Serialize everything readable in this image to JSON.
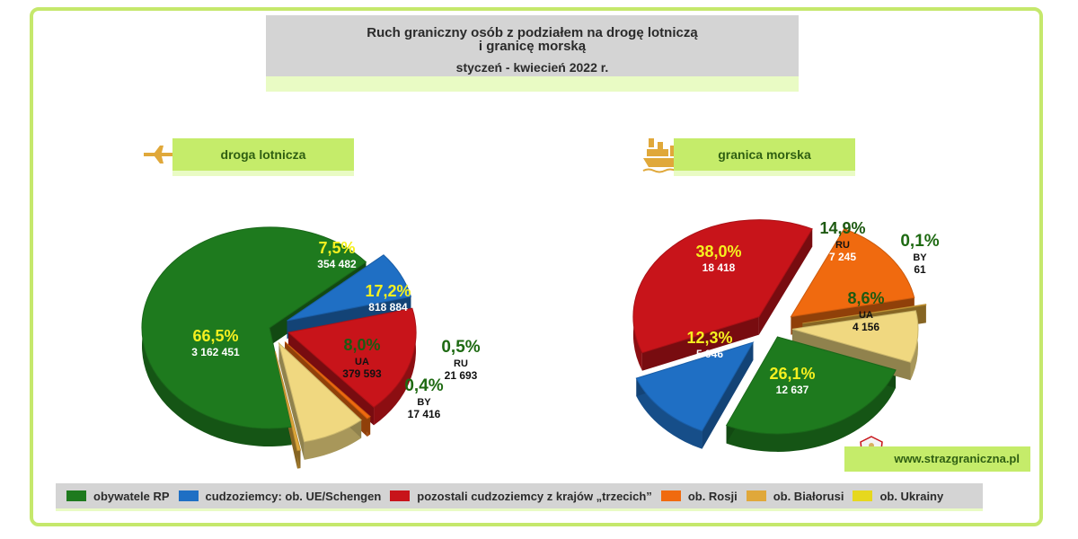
{
  "title": {
    "line1": "Ruch graniczny osób z podziałem na drogę lotniczą",
    "line2": "i granicę morską",
    "subtitle": "styczeń - kwiecień 2022 r."
  },
  "sections": {
    "air": "droga lotnicza",
    "sea": "granica morska"
  },
  "website": "www.strazgraniczna.pl",
  "colors": {
    "pl": "#1e7a1e",
    "eu": "#1f6fc4",
    "third": "#c8141a",
    "ru": "#f06a0f",
    "by": "#e0a83a",
    "ua": "#f0d880",
    "accent_green": "#c5ec6a",
    "frame": "#c5e86c"
  },
  "legend": [
    {
      "label": "obywatele RP",
      "color": "#1e7a1e"
    },
    {
      "label": "cudzoziemcy: ob. UE/Schengen",
      "color": "#1f6fc4"
    },
    {
      "label": "pozostali cudzoziemcy z krajów „trzecich”",
      "color": "#c8141a"
    },
    {
      "label": "ob. Rosji",
      "color": "#f06a0f"
    },
    {
      "label": "ob. Białorusi",
      "color": "#e0a83a"
    },
    {
      "label": "ob. Ukrainy",
      "color": "#e6d81e"
    }
  ],
  "chart_data": [
    {
      "type": "pie",
      "title": "droga lotnicza",
      "slices": [
        {
          "key": "pl",
          "pct": 66.5,
          "pct_label": "66,5%",
          "value": 3162451,
          "value_label": "3 162 451",
          "code": ""
        },
        {
          "key": "eu",
          "pct": 7.5,
          "pct_label": "7,5%",
          "value": 354482,
          "value_label": "354 482",
          "code": ""
        },
        {
          "key": "third",
          "pct": 17.2,
          "pct_label": "17,2%",
          "value": 818884,
          "value_label": "818 884",
          "code": ""
        },
        {
          "key": "ru",
          "pct": 0.5,
          "pct_label": "0,5%",
          "value": 21693,
          "value_label": "21 693",
          "code": "RU"
        },
        {
          "key": "ua",
          "pct": 8.0,
          "pct_label": "8,0%",
          "value": 379593,
          "value_label": "379 593",
          "code": "UA"
        },
        {
          "key": "by",
          "pct": 0.4,
          "pct_label": "0,4%",
          "value": 17416,
          "value_label": "17 416",
          "code": "BY"
        }
      ]
    },
    {
      "type": "pie",
      "title": "granica morska",
      "slices": [
        {
          "key": "pl",
          "pct": 26.1,
          "pct_label": "26,1%",
          "value": 12637,
          "value_label": "12 637",
          "code": ""
        },
        {
          "key": "eu",
          "pct": 12.3,
          "pct_label": "12,3%",
          "value": 5946,
          "value_label": "5 946",
          "code": ""
        },
        {
          "key": "third",
          "pct": 38.0,
          "pct_label": "38,0%",
          "value": 18418,
          "value_label": "18 418",
          "code": ""
        },
        {
          "key": "ru",
          "pct": 14.9,
          "pct_label": "14,9%",
          "value": 7245,
          "value_label": "7 245",
          "code": "RU"
        },
        {
          "key": "by",
          "pct": 0.1,
          "pct_label": "0,1%",
          "value": 61,
          "value_label": "61",
          "code": "BY"
        },
        {
          "key": "ua",
          "pct": 8.6,
          "pct_label": "8,6%",
          "value": 4156,
          "value_label": "4 156",
          "code": "UA"
        }
      ]
    }
  ]
}
